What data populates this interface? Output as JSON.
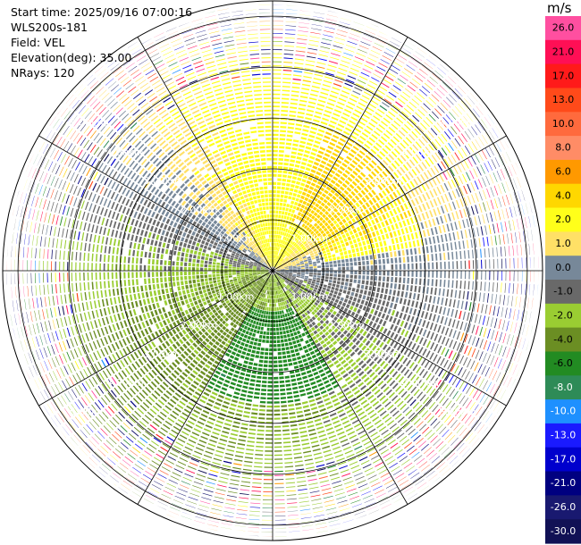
{
  "meta": {
    "start_time": "Start time: 2025/09/16 07:00:16",
    "instrument": "WLS200s-181",
    "field": "Field: VEL",
    "elevation": "Elevation(deg): 35.00",
    "nrays": "NRays: 120"
  },
  "colorbar": {
    "unit": "m/s",
    "bins": [
      {
        "label": "26.0",
        "color": "#ff4fa0"
      },
      {
        "label": "21.0",
        "color": "#ff0f55"
      },
      {
        "label": "17.0",
        "color": "#ff1a1a"
      },
      {
        "label": "13.0",
        "color": "#ff4a1a"
      },
      {
        "label": "10.0",
        "color": "#ff6a3d"
      },
      {
        "label": "8.0",
        "color": "#ff8c66"
      },
      {
        "label": "6.0",
        "color": "#ff9900"
      },
      {
        "label": "4.0",
        "color": "#ffd700"
      },
      {
        "label": "2.0",
        "color": "#ffff1a"
      },
      {
        "label": "1.0",
        "color": "#ffe066"
      },
      {
        "label": "0.0",
        "color": "#778899"
      },
      {
        "label": "-1.0",
        "color": "#696969"
      },
      {
        "label": "-2.0",
        "color": "#9acd32"
      },
      {
        "label": "-4.0",
        "color": "#6b8e23"
      },
      {
        "label": "-6.0",
        "color": "#228b22"
      },
      {
        "label": "-8.0",
        "color": "#2e8b57"
      },
      {
        "label": "-10.0",
        "color": "#1e90ff"
      },
      {
        "label": "-13.0",
        "color": "#1a1aff"
      },
      {
        "label": "-17.0",
        "color": "#0000cd"
      },
      {
        "label": "-21.0",
        "color": "#000080"
      },
      {
        "label": "-26.0",
        "color": "#191970"
      },
      {
        "label": "-30.0",
        "color": "#111155"
      }
    ]
  },
  "chart_data": {
    "type": "heatmap",
    "projection": "polar-ppi",
    "field": "VEL",
    "range_ring_labels": [
      "1.00km",
      "2.00km",
      "3.00km",
      "4.00km",
      "5.00km"
    ],
    "range_rings_km": [
      1,
      2,
      3,
      4,
      5
    ],
    "max_range_km": 5.3,
    "nrays": 120,
    "spoke_angles_deg": [
      0,
      30,
      60,
      90,
      120,
      150,
      180,
      210,
      240,
      270,
      300,
      330
    ],
    "pattern_description_values": {
      "north_east_sector_ms": [
        2.0,
        6.0
      ],
      "south_sector_ms": [
        -6.0,
        -2.0
      ],
      "outer_noise": true
    }
  }
}
